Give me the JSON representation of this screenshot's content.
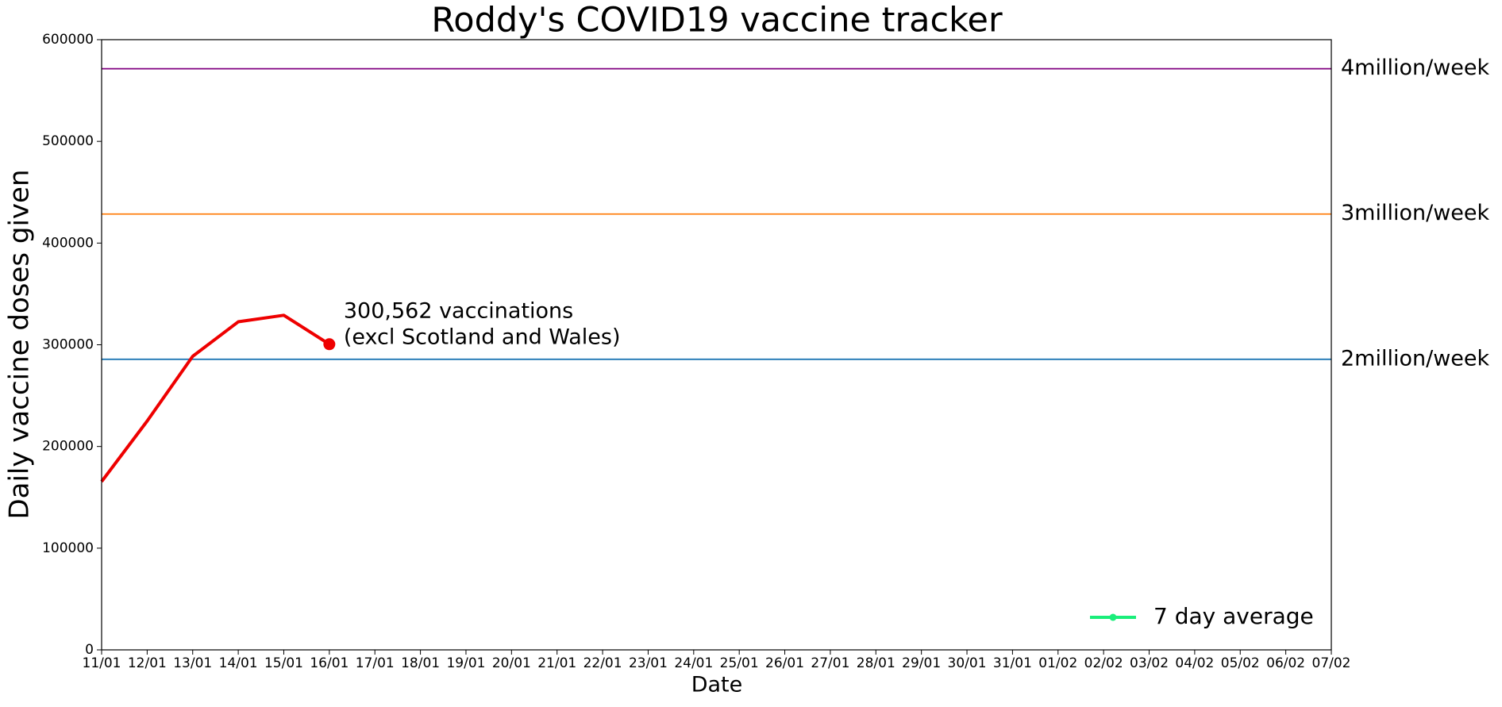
{
  "chart_data": {
    "type": "line",
    "title": "Roddy's COVID19 vaccine tracker",
    "title_color": "#008000",
    "xlabel": "Date",
    "ylabel": "Daily vaccine doses given",
    "categories": [
      "11/01",
      "12/01",
      "13/01",
      "14/01",
      "15/01",
      "16/01",
      "17/01",
      "18/01",
      "19/01",
      "20/01",
      "21/01",
      "22/01",
      "23/01",
      "24/01",
      "25/01",
      "26/01",
      "27/01",
      "28/01",
      "29/01",
      "30/01",
      "31/01",
      "01/02",
      "02/02",
      "03/02",
      "04/02",
      "05/02",
      "06/02",
      "07/02"
    ],
    "series": [
      {
        "color": "#ee0000",
        "values": [
          165500,
          225000,
          288700,
          322600,
          329000,
          300562,
          null,
          null,
          null,
          null,
          null,
          null,
          null,
          null,
          null,
          null,
          null,
          null,
          null,
          null,
          null,
          null,
          null,
          null,
          null,
          null,
          null,
          null
        ]
      }
    ],
    "reference_lines": [
      {
        "label": "4million/week",
        "value": 571429,
        "color": "#800080"
      },
      {
        "label": "3million/week",
        "value": 428571,
        "color": "#ff7f0e"
      },
      {
        "label": "2million/week",
        "value": 285714,
        "color": "#1f77b4"
      }
    ],
    "annotation": {
      "lines": [
        "300,562 vaccinations",
        "(excl Scotland and Wales)"
      ]
    },
    "legend": {
      "loc": "lower right",
      "entries": [
        {
          "label": "7 day average",
          "color": "#1aee7a"
        }
      ]
    },
    "ylim": [
      0,
      600000
    ],
    "yticks": [
      0,
      100000,
      200000,
      300000,
      400000,
      500000,
      600000
    ],
    "grid": false
  }
}
